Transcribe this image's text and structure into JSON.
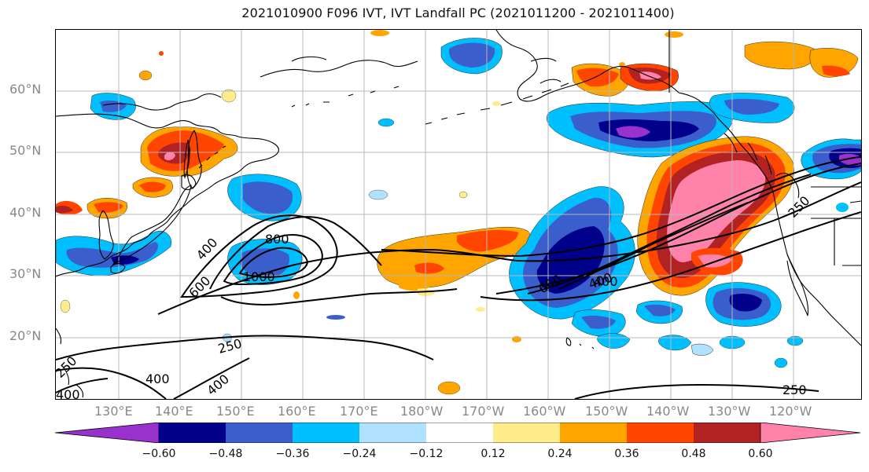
{
  "title": "2021010900 F096 IVT, IVT Landfall PC (2021011200 - 2021011400)",
  "latitude_labels": [
    "60°N",
    "50°N",
    "40°N",
    "30°N",
    "20°N"
  ],
  "longitude_labels": [
    "130°E",
    "140°E",
    "150°E",
    "160°E",
    "170°E",
    "180°W",
    "170°W",
    "160°W",
    "150°W",
    "140°W",
    "130°W",
    "120°W"
  ],
  "contour_labels": [
    "400",
    "800",
    "1000",
    "600",
    "250",
    "400",
    "250",
    "400",
    "400",
    "600",
    "250",
    "250",
    "400",
    "400"
  ],
  "colorbar": {
    "tick_labels": [
      "−0.60",
      "−0.48",
      "−0.36",
      "−0.24",
      "−0.12",
      "0.12",
      "0.24",
      "0.36",
      "0.48",
      "0.60"
    ],
    "colors": [
      "#9932cc",
      "#00008b",
      "#3a5fcd",
      "#00bfff",
      "#b0e2ff",
      "#ffffff",
      "#ffec8b",
      "#ffa500",
      "#ff4500",
      "#b22222",
      "#ff82ab"
    ]
  },
  "palette": {
    "purple": "#9932cc",
    "navy": "#00008b",
    "royal_blue": "#3a5fcd",
    "deep_sky": "#00bfff",
    "light_blue": "#b0e2ff",
    "light_yellow": "#ffec8b",
    "orange": "#ffa500",
    "orange_red": "#ff4500",
    "firebrick": "#b22222",
    "pink": "#ff82ab"
  }
}
